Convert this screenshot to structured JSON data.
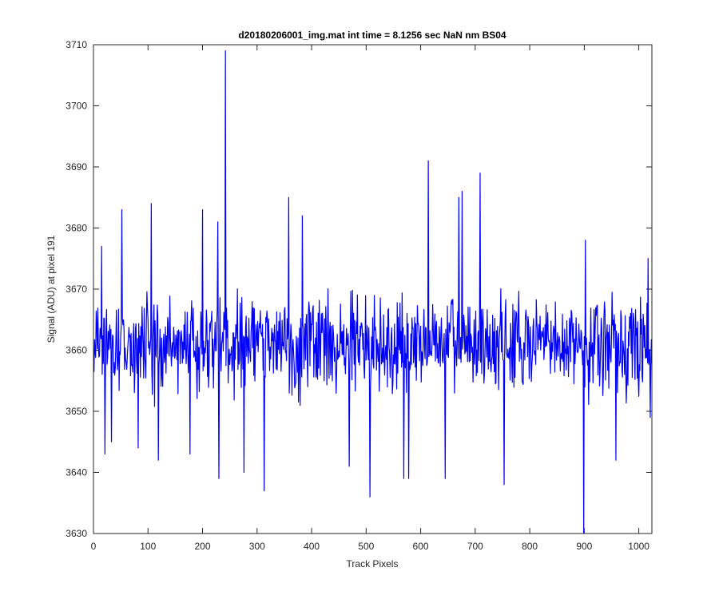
{
  "chart_data": {
    "type": "line",
    "title": "d20180206001_img.mat int time = 8.1256 sec  NaN nm BS04",
    "xlabel": "Track Pixels",
    "ylabel": "Signal (ADU) at pixel 191",
    "xlim": [
      0,
      1024
    ],
    "ylim": [
      3630,
      3710
    ],
    "xticks": [
      0,
      100,
      200,
      300,
      400,
      500,
      600,
      700,
      800,
      900,
      1000
    ],
    "yticks": [
      3630,
      3640,
      3650,
      3660,
      3670,
      3680,
      3690,
      3700,
      3710
    ],
    "xtick_labels": [
      "0",
      "100",
      "200",
      "300",
      "400",
      "500",
      "600",
      "700",
      "800",
      "900",
      "1000"
    ],
    "ytick_labels": [
      "3630",
      "3640",
      "3650",
      "3660",
      "3670",
      "3680",
      "3690",
      "3700",
      "3710"
    ],
    "grid": false,
    "line_color": "#0000ff",
    "series_note": "noise around 3661 ADU, range ~3643-3683 with sparse outliers",
    "series": [
      {
        "baseline": 3661,
        "spread": 9,
        "num_points": 1024,
        "notable_points": [
          {
            "x": 15,
            "y": 3677
          },
          {
            "x": 21,
            "y": 3643
          },
          {
            "x": 33,
            "y": 3645
          },
          {
            "x": 52,
            "y": 3683
          },
          {
            "x": 82,
            "y": 3644
          },
          {
            "x": 106,
            "y": 3684
          },
          {
            "x": 119,
            "y": 3642
          },
          {
            "x": 177,
            "y": 3643
          },
          {
            "x": 200,
            "y": 3683
          },
          {
            "x": 228,
            "y": 3681
          },
          {
            "x": 230,
            "y": 3639
          },
          {
            "x": 242,
            "y": 3709
          },
          {
            "x": 276,
            "y": 3640
          },
          {
            "x": 313,
            "y": 3637
          },
          {
            "x": 358,
            "y": 3685
          },
          {
            "x": 383,
            "y": 3682
          },
          {
            "x": 469,
            "y": 3641
          },
          {
            "x": 507,
            "y": 3636
          },
          {
            "x": 569,
            "y": 3639
          },
          {
            "x": 578,
            "y": 3639
          },
          {
            "x": 614,
            "y": 3691
          },
          {
            "x": 645,
            "y": 3639
          },
          {
            "x": 670,
            "y": 3685
          },
          {
            "x": 676,
            "y": 3686
          },
          {
            "x": 709,
            "y": 3689
          },
          {
            "x": 753,
            "y": 3638
          },
          {
            "x": 899,
            "y": 3630
          },
          {
            "x": 902,
            "y": 3678
          },
          {
            "x": 958,
            "y": 3642
          },
          {
            "x": 1017,
            "y": 3675
          },
          {
            "x": 1021,
            "y": 3649
          }
        ]
      }
    ]
  }
}
